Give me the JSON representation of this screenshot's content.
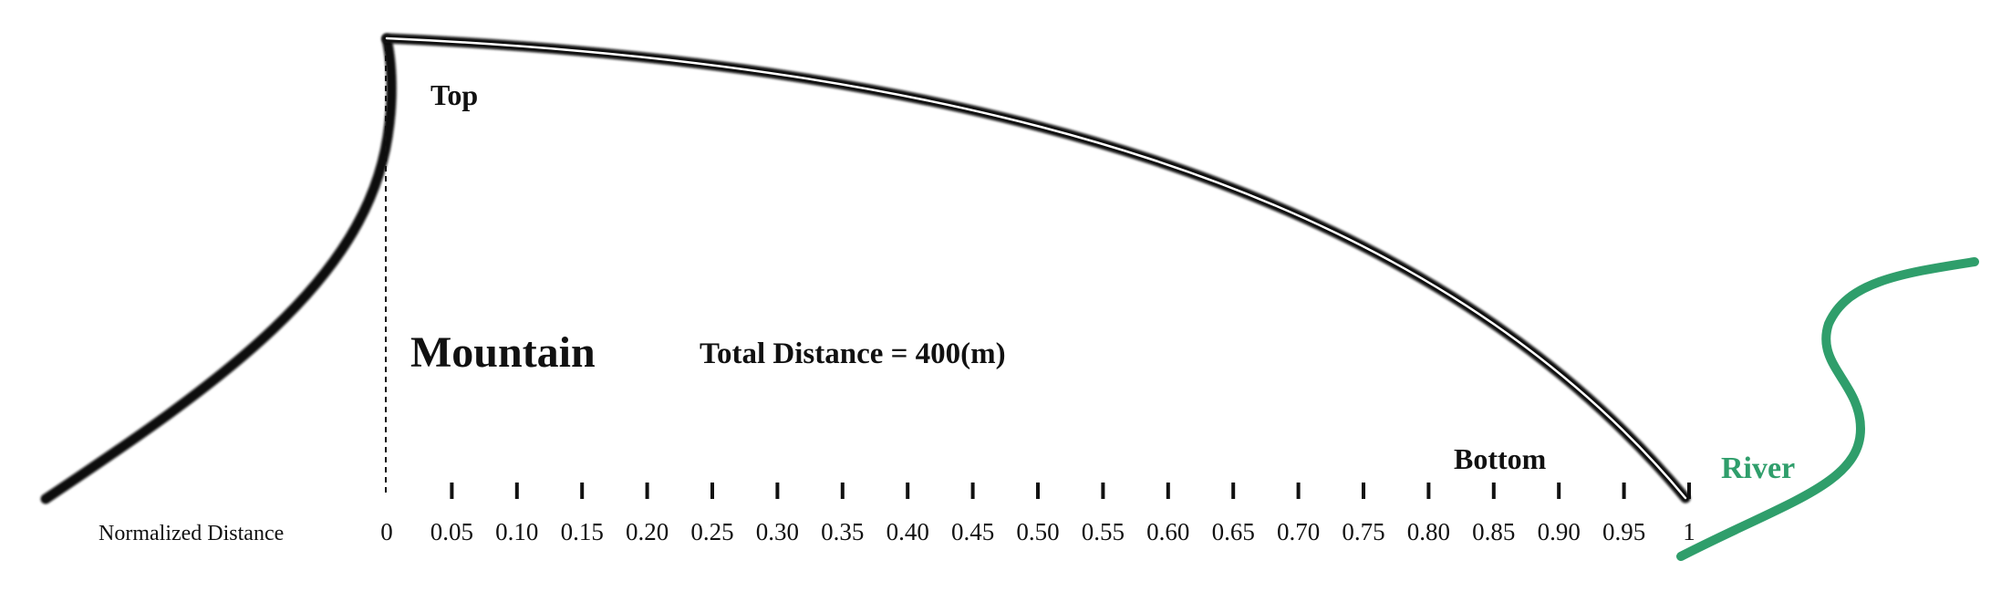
{
  "labels": {
    "top": "Top",
    "mountain": "Mountain",
    "total_distance": "Total Distance = 400(m)",
    "bottom": "Bottom",
    "river": "River",
    "axis_title": "Normalized Distance"
  },
  "axis": {
    "min": 0,
    "max": 1,
    "step": 0.05,
    "ticks": [
      "0",
      "0.05",
      "0.10",
      "0.15",
      "0.20",
      "0.25",
      "0.30",
      "0.35",
      "0.40",
      "0.45",
      "0.50",
      "0.55",
      "0.60",
      "0.65",
      "0.70",
      "0.75",
      "0.80",
      "0.85",
      "0.90",
      "0.95",
      "1"
    ]
  },
  "colors": {
    "ink": "#111111",
    "river": "#2f9e6b"
  }
}
